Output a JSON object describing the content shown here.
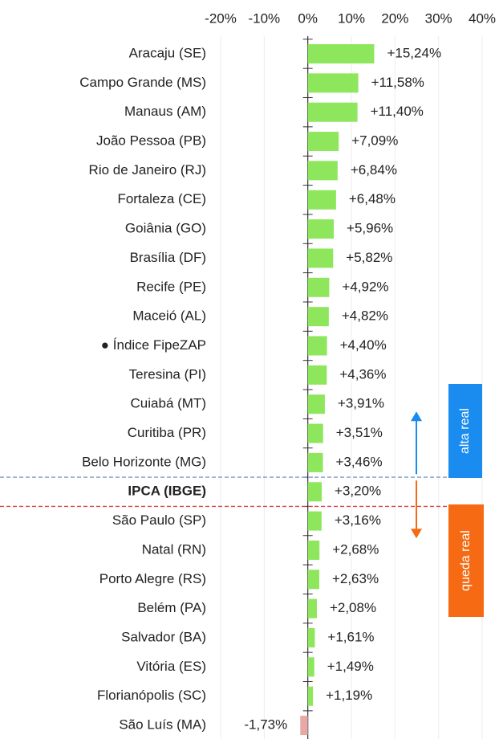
{
  "chart_data": {
    "type": "bar",
    "orientation": "horizontal",
    "categories": [
      "Aracaju (SE)",
      "Campo Grande (MS)",
      "Manaus (AM)",
      "João Pessoa (PB)",
      "Rio de Janeiro (RJ)",
      "Fortaleza (CE)",
      "Goiânia (GO)",
      "Brasília (DF)",
      "Recife (PE)",
      "Maceió (AL)",
      "● Índice FipeZAP",
      "Teresina (PI)",
      "Cuiabá (MT)",
      "Curitiba (PR)",
      "Belo Horizonte (MG)",
      "IPCA (IBGE)",
      "São Paulo (SP)",
      "Natal (RN)",
      "Porto Alegre (RS)",
      "Belém (PA)",
      "Salvador (BA)",
      "Vitória (ES)",
      "Florianópolis (SC)",
      "São Luís (MA)"
    ],
    "values": [
      15.24,
      11.58,
      11.4,
      7.09,
      6.84,
      6.48,
      5.96,
      5.82,
      4.92,
      4.82,
      4.4,
      4.36,
      3.91,
      3.51,
      3.46,
      3.2,
      3.16,
      2.68,
      2.63,
      2.08,
      1.61,
      1.49,
      1.19,
      -1.73
    ],
    "value_labels": [
      "+15,24%",
      "+11,58%",
      "+11,40%",
      "+7,09%",
      "+6,84%",
      "+6,48%",
      "+5,96%",
      "+5,82%",
      "+4,92%",
      "+4,82%",
      "+4,40%",
      "+4,36%",
      "+3,91%",
      "+3,51%",
      "+3,46%",
      "+3,20%",
      "+3,16%",
      "+2,68%",
      "+2,63%",
      "+2,08%",
      "+1,61%",
      "+1,49%",
      "+1,19%",
      "-1,73%"
    ],
    "color": "#8ee65c",
    "negative_color": "#e6a9a6",
    "xlim": [
      -20,
      40
    ],
    "xticks": [
      {
        "value": -20,
        "label": "-20%"
      },
      {
        "value": -10,
        "label": "-10%"
      },
      {
        "value": 0,
        "label": "0%"
      },
      {
        "value": 10,
        "label": "10%"
      },
      {
        "value": 20,
        "label": "20%"
      },
      {
        "value": 30,
        "label": "30%"
      },
      {
        "value": 40,
        "label": "40%"
      }
    ],
    "grid": true,
    "highlight_category": 15,
    "annotations": [
      {
        "text": "alta real",
        "color": "#1a8cf0",
        "line_color": "#7a9cc6"
      },
      {
        "text": "queda real",
        "color": "#f56a12",
        "line_color": "#e0404a"
      }
    ]
  }
}
